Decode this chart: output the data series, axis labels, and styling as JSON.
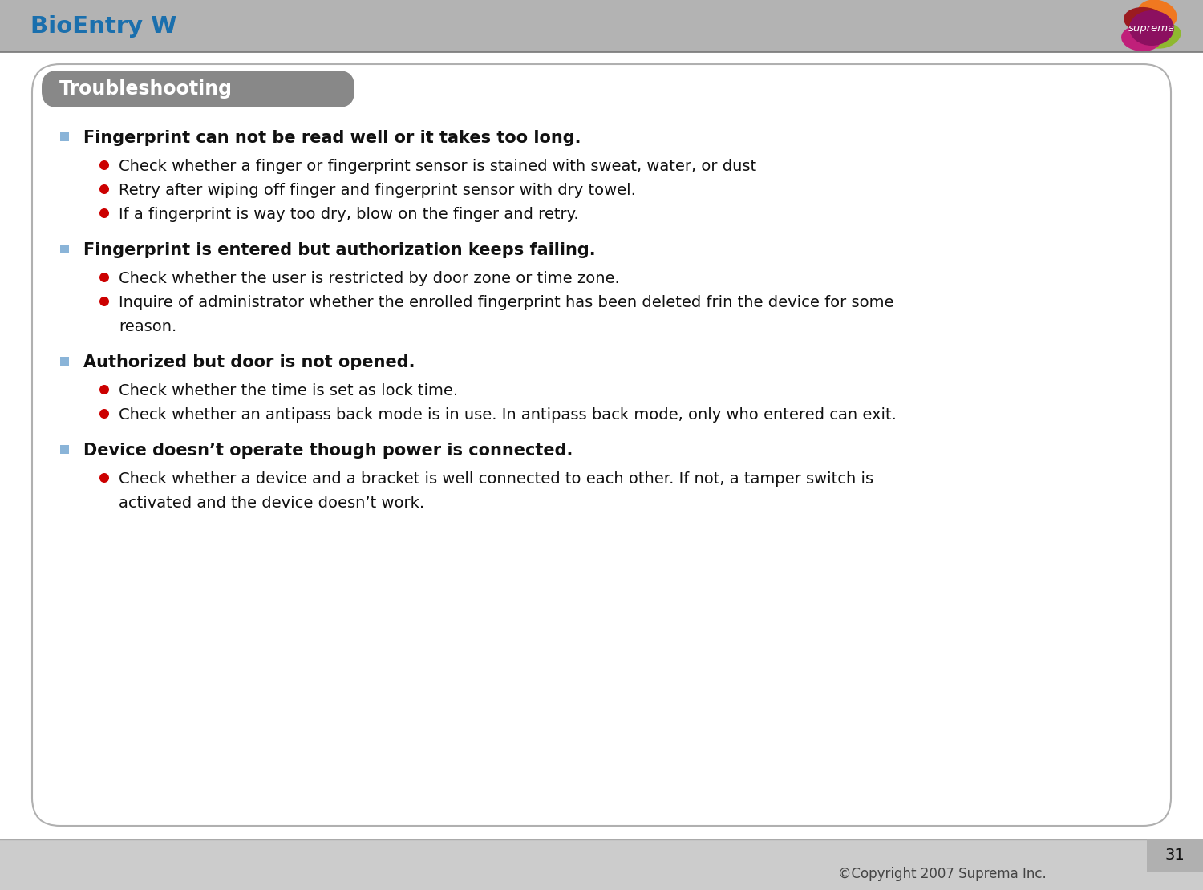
{
  "title": "BioEntry W",
  "title_color": "#1a6fad",
  "header_bg": "#b3b3b3",
  "header_line_color": "#888888",
  "section_label": "Troubleshooting",
  "section_label_color": "#ffffff",
  "section_bg": "#888888",
  "page_bg": "#ffffff",
  "footer_bg": "#cccccc",
  "footer_text": "©Copyright 2007 Suprema Inc.",
  "page_number": "31",
  "content_bg": "#ffffff",
  "content_border": "#b0b0b0",
  "bullet_square_color": "#8ab4d8",
  "bullet_circle_color": "#cc0000",
  "items": [
    {
      "heading": "Fingerprint can not be read well or it takes too long.",
      "sub_items": [
        "Check whether a finger or fingerprint sensor is stained with sweat, water, or dust",
        "Retry after wiping off finger and fingerprint sensor with dry towel.",
        "If a fingerprint is way too dry, blow on the finger and retry."
      ]
    },
    {
      "heading": "Fingerprint is entered but authorization keeps failing.",
      "sub_items": [
        "Check whether the user is restricted by door zone or time zone.",
        "Inquire of administrator whether the enrolled fingerprint has been deleted frin the device for some\nreason."
      ]
    },
    {
      "heading": "Authorized but door is not opened.",
      "sub_items": [
        "Check whether the time is set as lock time.",
        "Check whether an antipass back mode is in use. In antipass back mode, only who entered can exit."
      ]
    },
    {
      "heading": "Device doesn’t operate though power is connected.",
      "sub_items": [
        "Check whether a device and a bracket is well connected to each other. If not, a tamper switch is\nactivated and the device doesn’t work."
      ]
    }
  ]
}
